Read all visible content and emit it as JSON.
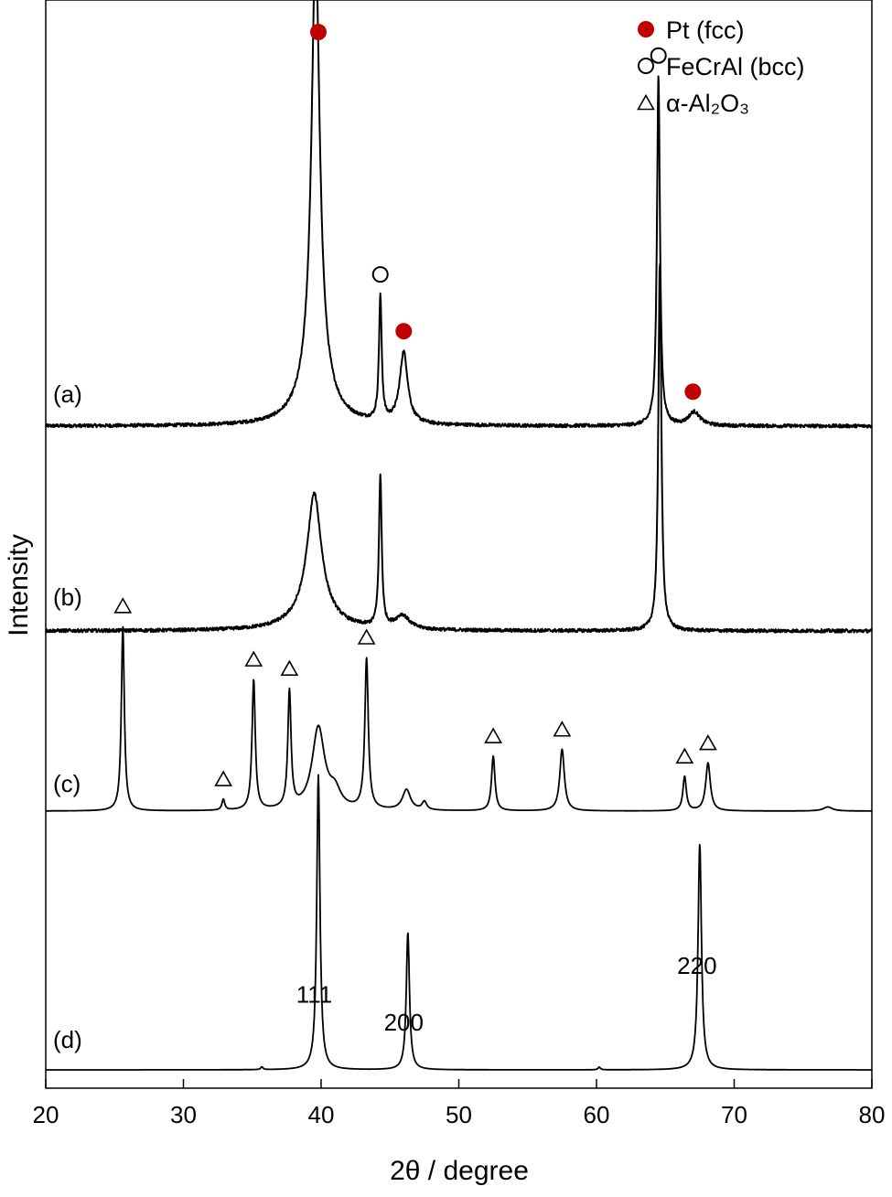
{
  "chart_data": {
    "type": "line",
    "xlabel": "2θ / degree",
    "ylabel": "Intensity",
    "xlim": [
      20,
      80
    ],
    "x_ticks": [
      "20",
      "30",
      "40",
      "50",
      "60",
      "70",
      "80"
    ],
    "grid": false,
    "legend_position": "top-right",
    "legend": [
      {
        "marker": "filled-circle",
        "color": "#c00000",
        "label": "Pt (fcc)"
      },
      {
        "marker": "open-circle",
        "label": "FeCrAl (bcc)"
      },
      {
        "marker": "open-triangle",
        "label": "α-Al₂O₃"
      }
    ],
    "series": [
      {
        "name": "(a)",
        "baseline": 0,
        "noise": 0.25,
        "peaks": [
          {
            "x": 39.6,
            "h": 31.0,
            "w": 0.35
          },
          {
            "x": 39.6,
            "h": 4.0,
            "w": 1.1
          },
          {
            "x": 44.3,
            "h": 9.0,
            "w": 0.12
          },
          {
            "x": 46.0,
            "h": 5.2,
            "w": 0.35
          },
          {
            "x": 64.5,
            "h": 25.5,
            "w": 0.13
          },
          {
            "x": 67.1,
            "h": 1.0,
            "w": 0.5
          }
        ],
        "markers": [
          {
            "x": 39.8,
            "type": "pt"
          },
          {
            "x": 44.3,
            "type": "fecral"
          },
          {
            "x": 46.0,
            "type": "pt"
          },
          {
            "x": 64.5,
            "type": "fecral"
          },
          {
            "x": 67.0,
            "type": "pt"
          }
        ]
      },
      {
        "name": "(b)",
        "baseline": 0,
        "noise": 0.25,
        "peaks": [
          {
            "x": 39.5,
            "h": 8.5,
            "w": 0.6
          },
          {
            "x": 39.5,
            "h": 1.5,
            "w": 1.6
          },
          {
            "x": 44.3,
            "h": 11.0,
            "w": 0.12
          },
          {
            "x": 45.9,
            "h": 1.0,
            "w": 0.6
          },
          {
            "x": 64.6,
            "h": 27.0,
            "w": 0.13
          }
        ],
        "markers": []
      },
      {
        "name": "(c)",
        "baseline": 0,
        "noise": 0.0,
        "peaks": [
          {
            "x": 25.6,
            "h": 13.5,
            "w": 0.13
          },
          {
            "x": 32.9,
            "h": 0.8,
            "w": 0.12
          },
          {
            "x": 35.1,
            "h": 9.5,
            "w": 0.14
          },
          {
            "x": 37.7,
            "h": 8.5,
            "w": 0.14
          },
          {
            "x": 39.8,
            "h": 6.0,
            "w": 0.55
          },
          {
            "x": 41.0,
            "h": 1.2,
            "w": 0.5
          },
          {
            "x": 43.3,
            "h": 11.0,
            "w": 0.15
          },
          {
            "x": 46.2,
            "h": 1.5,
            "w": 0.35
          },
          {
            "x": 47.5,
            "h": 0.6,
            "w": 0.2
          },
          {
            "x": 52.5,
            "h": 4.0,
            "w": 0.15
          },
          {
            "x": 57.5,
            "h": 4.5,
            "w": 0.2
          },
          {
            "x": 66.4,
            "h": 2.5,
            "w": 0.15
          },
          {
            "x": 68.1,
            "h": 3.5,
            "w": 0.2
          },
          {
            "x": 76.8,
            "h": 0.3,
            "w": 0.4
          }
        ],
        "markers": [
          {
            "x": 25.6,
            "type": "alumina"
          },
          {
            "x": 32.9,
            "type": "alumina"
          },
          {
            "x": 35.1,
            "type": "alumina"
          },
          {
            "x": 37.7,
            "type": "alumina"
          },
          {
            "x": 43.3,
            "type": "alumina"
          },
          {
            "x": 52.5,
            "type": "alumina"
          },
          {
            "x": 57.5,
            "type": "alumina"
          },
          {
            "x": 66.4,
            "type": "alumina"
          },
          {
            "x": 68.1,
            "type": "alumina"
          }
        ]
      },
      {
        "name": "(d)",
        "baseline": 0,
        "noise": 0.0,
        "peaks": [
          {
            "x": 35.7,
            "h": 0.2,
            "w": 0.1
          },
          {
            "x": 39.8,
            "h": 21.5,
            "w": 0.14
          },
          {
            "x": 46.3,
            "h": 10.0,
            "w": 0.14
          },
          {
            "x": 60.2,
            "h": 0.2,
            "w": 0.1
          },
          {
            "x": 67.5,
            "h": 16.5,
            "w": 0.15
          }
        ],
        "markers": []
      }
    ],
    "annotations": [
      {
        "text": "111",
        "x": 39.5
      },
      {
        "text": "200",
        "x": 46.0
      },
      {
        "text": "220",
        "x": 67.3
      }
    ]
  }
}
